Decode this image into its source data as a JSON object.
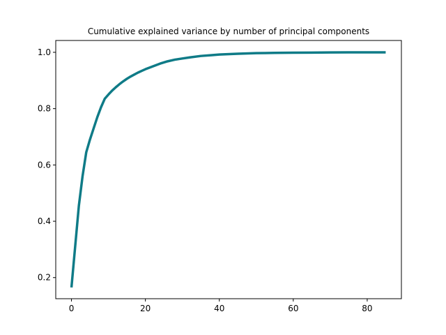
{
  "chart_data": {
    "type": "line",
    "title": "Cumulative explained variance by number of principal components",
    "xlabel": "",
    "ylabel": "",
    "xlim": [
      -4.25,
      89.25
    ],
    "ylim": [
      0.125,
      1.042
    ],
    "xticks": [
      0,
      20,
      40,
      60,
      80
    ],
    "yticks": [
      0.2,
      0.4,
      0.6,
      0.8,
      1.0
    ],
    "xtick_labels": [
      "0",
      "20",
      "40",
      "60",
      "80"
    ],
    "ytick_labels": [
      "0.2",
      "0.4",
      "0.6",
      "0.8",
      "1.0"
    ],
    "grid": false,
    "legend": "none",
    "series": [
      {
        "color": "#0f7b87",
        "x": [
          0,
          1,
          2,
          3,
          4,
          5,
          6,
          7,
          8,
          9,
          10,
          11,
          12,
          13,
          14,
          15,
          16,
          17,
          18,
          19,
          20,
          22,
          24,
          26,
          28,
          30,
          32,
          35,
          38,
          40,
          45,
          50,
          55,
          60,
          65,
          70,
          75,
          80,
          85
        ],
        "y": [
          0.165,
          0.31,
          0.455,
          0.56,
          0.645,
          0.69,
          0.73,
          0.77,
          0.805,
          0.835,
          0.85,
          0.864,
          0.876,
          0.887,
          0.897,
          0.906,
          0.914,
          0.921,
          0.928,
          0.934,
          0.94,
          0.95,
          0.96,
          0.968,
          0.974,
          0.978,
          0.982,
          0.987,
          0.99,
          0.992,
          0.995,
          0.997,
          0.998,
          0.9985,
          0.999,
          0.9995,
          0.9998,
          1.0,
          1.0
        ]
      }
    ]
  }
}
